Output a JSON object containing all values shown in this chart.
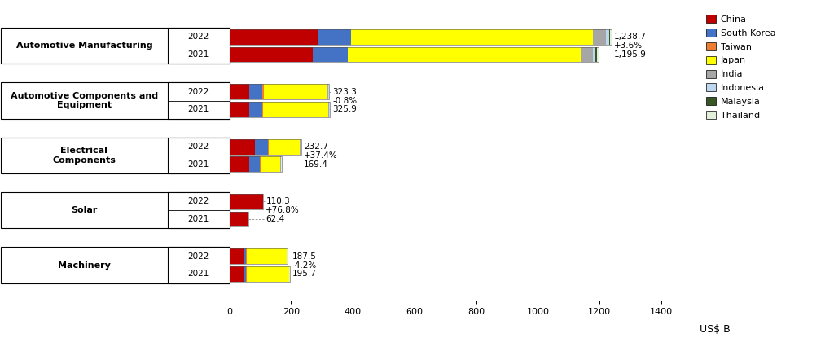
{
  "categories": [
    "Automotive Manufacturing",
    "Automotive Components and\nEquipment",
    "Electrical Components",
    "Solar",
    "Machinery"
  ],
  "cat_labels": [
    "Automotive Manufacturing",
    "Automotive Components and\nEquipment",
    "Electrical\nComponents",
    "Solar",
    "Machinery"
  ],
  "totals_2022": [
    1238.7,
    323.3,
    232.7,
    110.3,
    187.5
  ],
  "totals_2021": [
    1195.9,
    325.9,
    169.4,
    62.4,
    195.7
  ],
  "changes": [
    "+3.6%",
    "-0.8%",
    "+37.4%",
    "+76.8%",
    "-4.2%"
  ],
  "countries": [
    "China",
    "South Korea",
    "Taiwan",
    "Japan",
    "India",
    "Indonesia",
    "Malaysia",
    "Thailand"
  ],
  "colors": {
    "China": "#C00000",
    "South Korea": "#4472C4",
    "Taiwan": "#ED7D31",
    "Japan": "#FFFF00",
    "India": "#A6A6A6",
    "Indonesia": "#BDD7EE",
    "Malaysia": "#375623",
    "Thailand": "#E2EFDA"
  },
  "segments_2022": [
    {
      "China": 285,
      "South Korea": 110,
      "Taiwan": 0,
      "Japan": 783,
      "India": 42,
      "Indonesia": 10,
      "Malaysia": 4,
      "Thailand": 4.7
    },
    {
      "China": 65,
      "South Korea": 42,
      "Taiwan": 4,
      "Japan": 207,
      "India": 3,
      "Indonesia": 1,
      "Malaysia": 0.5,
      "Thailand": 0.8
    },
    {
      "China": 82,
      "South Korea": 42,
      "Taiwan": 5,
      "Japan": 99,
      "India": 2.5,
      "Indonesia": 1,
      "Malaysia": 0.5,
      "Thailand": 0.7
    },
    {
      "China": 110,
      "South Korea": 0,
      "Taiwan": 0,
      "Japan": 0,
      "India": 0,
      "Indonesia": 0,
      "Malaysia": 0,
      "Thailand": 0.3
    },
    {
      "China": 48,
      "South Korea": 5,
      "Taiwan": 3,
      "Japan": 129,
      "India": 1,
      "Indonesia": 0.5,
      "Malaysia": 0.5,
      "Thailand": 0.5
    }
  ],
  "segments_2021": [
    {
      "China": 270,
      "South Korea": 115,
      "Taiwan": 0,
      "Japan": 753,
      "India": 40,
      "Indonesia": 9,
      "Malaysia": 5,
      "Thailand": 3.9
    },
    {
      "China": 65,
      "South Korea": 42,
      "Taiwan": 3,
      "Japan": 211,
      "India": 2.5,
      "Indonesia": 1,
      "Malaysia": 0.5,
      "Thailand": 0.9
    },
    {
      "China": 65,
      "South Korea": 35,
      "Taiwan": 3,
      "Japan": 63,
      "India": 1.5,
      "Indonesia": 0.5,
      "Malaysia": 0.4,
      "Thailand": 1
    },
    {
      "China": 62,
      "South Korea": 0,
      "Taiwan": 0,
      "Japan": 0,
      "India": 0,
      "Indonesia": 0,
      "Malaysia": 0,
      "Thailand": 0.4
    },
    {
      "China": 48,
      "South Korea": 5,
      "Taiwan": 3,
      "Japan": 137,
      "India": 1,
      "Indonesia": 0.5,
      "Malaysia": 0.5,
      "Thailand": 0.7
    }
  ],
  "xlim": [
    0,
    1400
  ],
  "xticks": [
    0,
    200,
    400,
    600,
    800,
    1000,
    1200,
    1400
  ],
  "xlabel": "US$ B",
  "background_color": "#FFFFFF"
}
